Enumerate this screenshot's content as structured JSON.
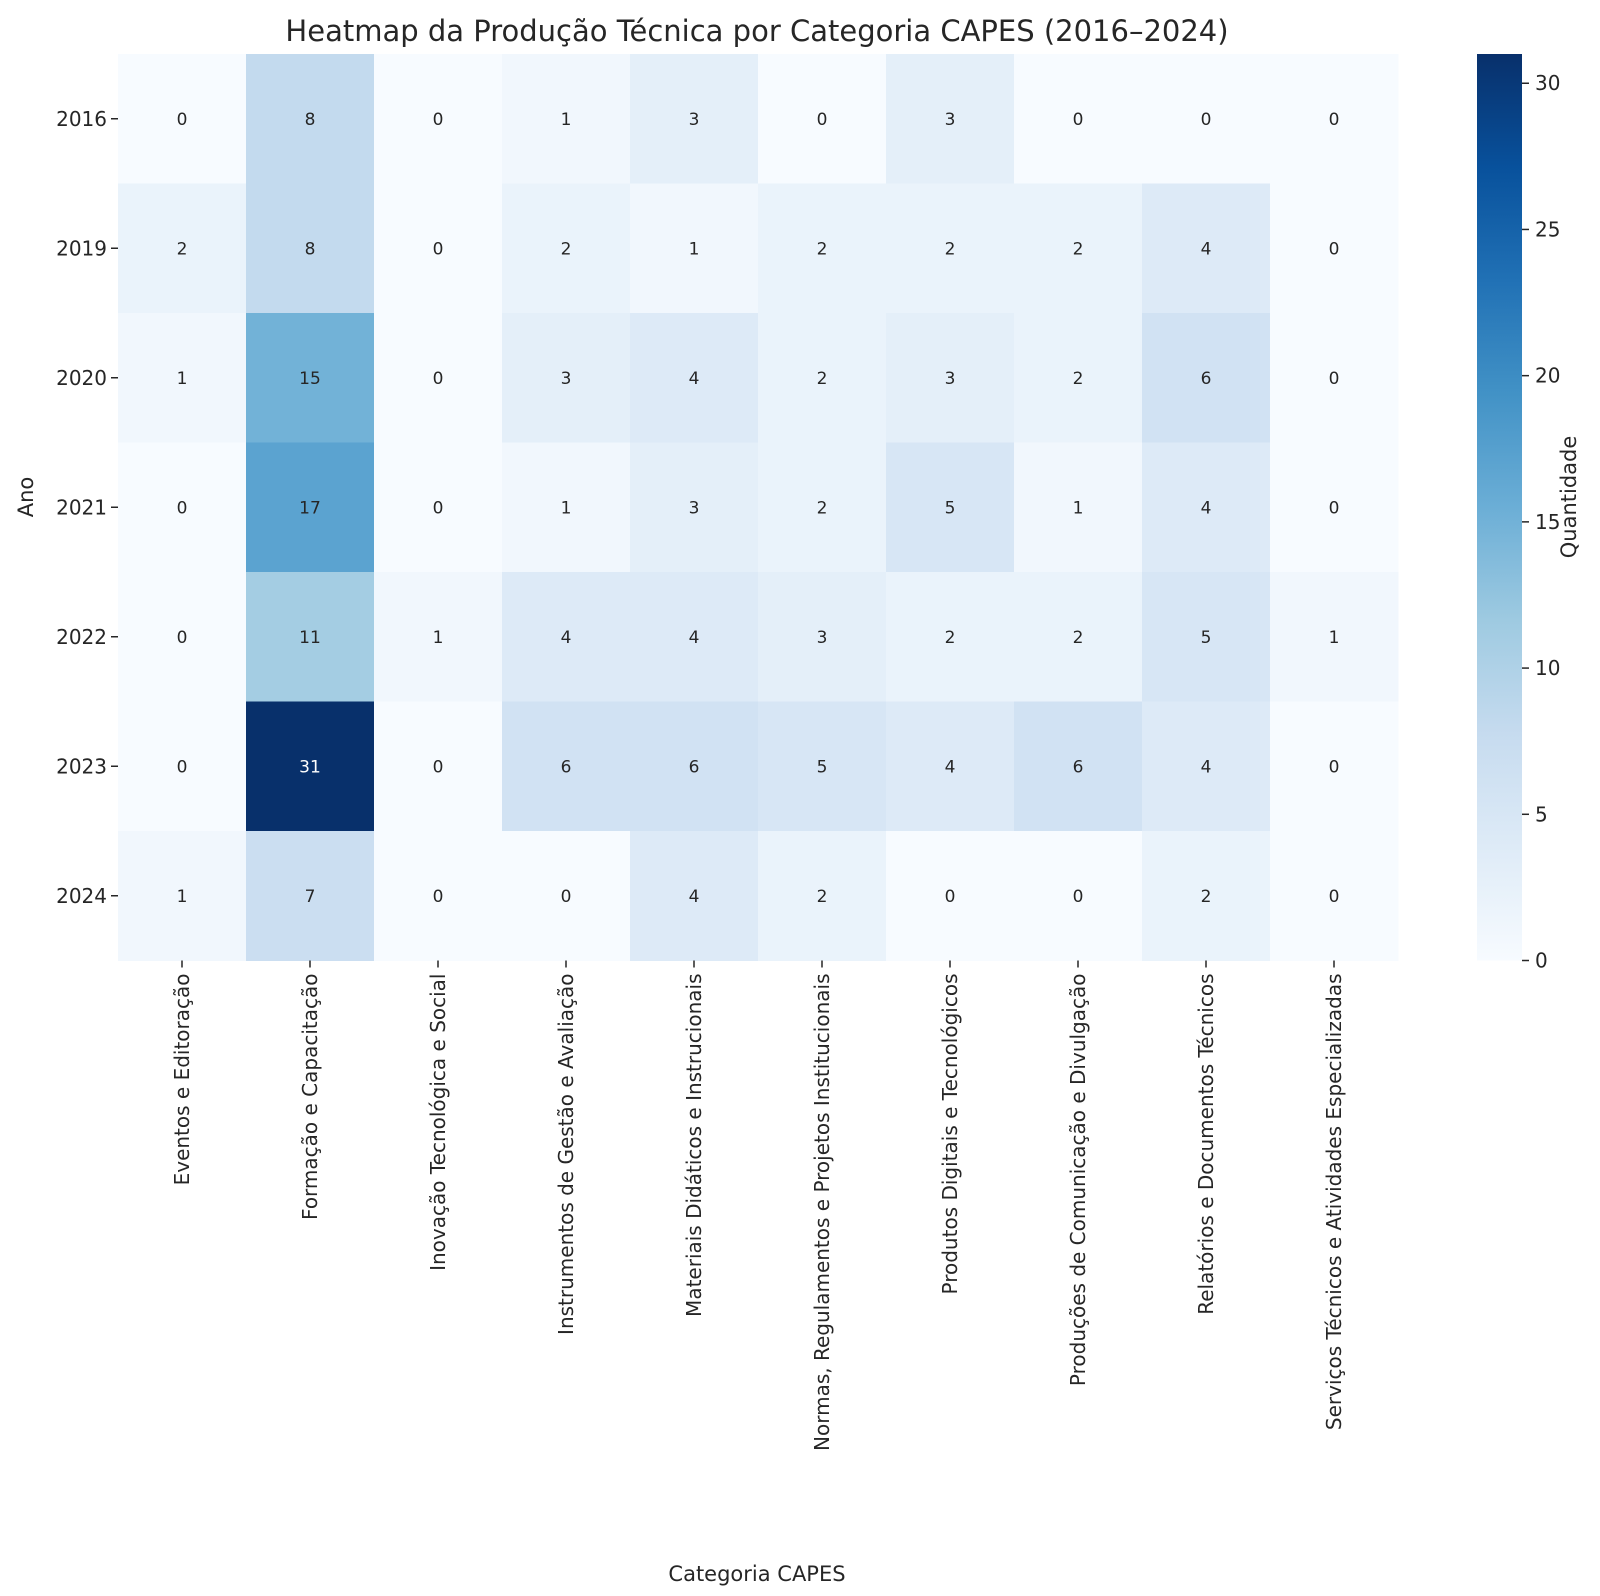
{
  "chart_data": {
    "type": "heatmap",
    "title": "Heatmap da Produção Técnica por Categoria CAPES (2016–2024)",
    "xlabel": "Categoria CAPES",
    "ylabel": "Ano",
    "colorbar_label": "Quantidade",
    "colormap": "Blues",
    "colormap_stops": [
      "#f7fbff",
      "#deebf7",
      "#c6dbef",
      "#9ecae1",
      "#6baed6",
      "#4292c6",
      "#2171b5",
      "#08519c",
      "#08306b"
    ],
    "vmin": 0,
    "vmax": 31,
    "colorbar_ticks": [
      0,
      5,
      10,
      15,
      20,
      25,
      30
    ],
    "annotation_dark_color": "#262626",
    "annotation_light_color": "#ffffff",
    "rows": [
      "2016",
      "2019",
      "2020",
      "2021",
      "2022",
      "2023",
      "2024"
    ],
    "columns": [
      "Eventos e Editoração",
      "Formação e Capacitação",
      "Inovação Tecnológica e Social",
      "Instrumentos de Gestão e Avaliação",
      "Materiais Didáticos e Instrucionais",
      "Normas, Regulamentos e Projetos Institucionais",
      "Produtos Digitais e Tecnológicos",
      "Produções de Comunicação e Divulgação",
      "Relatórios e Documentos Técnicos",
      "Serviços Técnicos e Atividades Especializadas"
    ],
    "values": [
      [
        0,
        8,
        0,
        1,
        3,
        0,
        3,
        0,
        0,
        0
      ],
      [
        2,
        8,
        0,
        2,
        1,
        2,
        2,
        2,
        4,
        0
      ],
      [
        1,
        15,
        0,
        3,
        4,
        2,
        3,
        2,
        6,
        0
      ],
      [
        0,
        17,
        0,
        1,
        3,
        2,
        5,
        1,
        4,
        0
      ],
      [
        0,
        11,
        1,
        4,
        4,
        3,
        2,
        2,
        5,
        1
      ],
      [
        0,
        31,
        0,
        6,
        6,
        5,
        4,
        6,
        4,
        0
      ],
      [
        1,
        7,
        0,
        0,
        4,
        2,
        0,
        0,
        2,
        0
      ]
    ]
  }
}
